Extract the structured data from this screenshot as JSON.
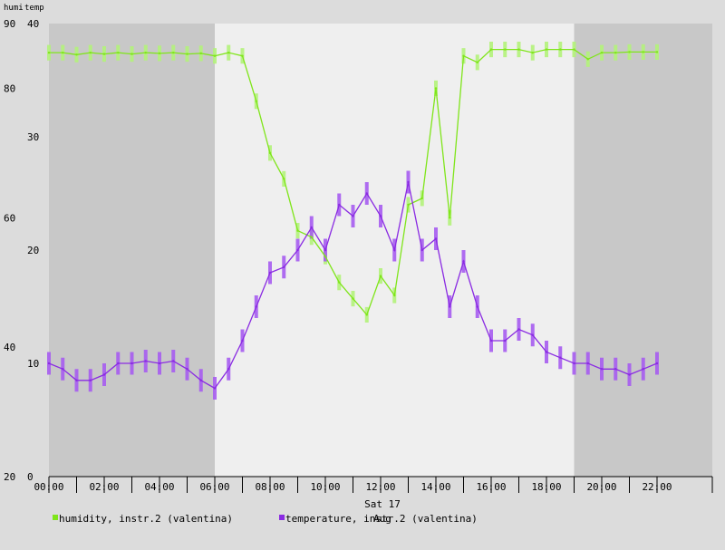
{
  "chart_data": {
    "type": "line",
    "axis_labels": {
      "left": "humi",
      "right": "temp"
    },
    "x_axis": {
      "ticks": [
        "00:00",
        "02:00",
        "04:00",
        "06:00",
        "08:00",
        "10:00",
        "12:00",
        "14:00",
        "16:00",
        "18:00",
        "20:00",
        "22:00"
      ],
      "range_hours": [
        0,
        24
      ],
      "date_label": "Sat 17",
      "date_label_2": "Aug"
    },
    "y_axis_humi": {
      "ticks": [
        "20",
        "40",
        "60",
        "80",
        "90"
      ],
      "range": [
        20,
        90
      ]
    },
    "y_axis_temp": {
      "ticks": [
        "0",
        "10",
        "20",
        "30",
        "40"
      ],
      "range": [
        0,
        40
      ]
    },
    "shading": {
      "night_color": "#c8c8c8",
      "day_color": "#efefef",
      "night_periods_hours": [
        [
          0,
          6.0
        ],
        [
          19.0,
          24
        ]
      ]
    },
    "series": [
      {
        "name": "humidity, instr.2 (valentina)",
        "color": "#7fe51a",
        "band_color": "#b2f27a",
        "axis": "left",
        "x": [
          0.0,
          0.5,
          1.0,
          1.5,
          2.0,
          2.5,
          3.0,
          3.5,
          4.0,
          4.5,
          5.0,
          5.5,
          6.0,
          6.5,
          7.0,
          7.5,
          8.0,
          8.5,
          9.0,
          9.5,
          10.0,
          10.5,
          11.0,
          11.5,
          12.0,
          12.5,
          13.0,
          13.5,
          14.0,
          14.5,
          15.0,
          15.5,
          16.0,
          16.5,
          17.0,
          17.5,
          18.0,
          18.5,
          19.0,
          19.5,
          20.0,
          20.5,
          21.0,
          21.5,
          22.0
        ],
        "values": [
          85.5,
          85.5,
          85.2,
          85.5,
          85.3,
          85.5,
          85.3,
          85.5,
          85.4,
          85.5,
          85.3,
          85.4,
          85.0,
          85.5,
          85.0,
          78.0,
          70.0,
          66.0,
          58.0,
          57.0,
          54.0,
          50.0,
          47.5,
          45.0,
          51.0,
          48.0,
          62.0,
          63.0,
          80.0,
          60.0,
          85.0,
          84.0,
          86.0,
          86.0,
          86.0,
          85.5,
          86.0,
          86.0,
          86.0,
          84.5,
          85.5,
          85.5,
          85.6,
          85.6,
          85.6
        ],
        "error": 1.2
      },
      {
        "name": "temperature, instr.2 (valentina)",
        "color": "#8a2be2",
        "band_color": "#a65cf0",
        "axis": "right",
        "x": [
          0.0,
          0.5,
          1.0,
          1.5,
          2.0,
          2.5,
          3.0,
          3.5,
          4.0,
          4.5,
          5.0,
          5.5,
          6.0,
          6.5,
          7.0,
          7.5,
          8.0,
          8.5,
          9.0,
          9.5,
          10.0,
          10.5,
          11.0,
          11.5,
          12.0,
          12.5,
          13.0,
          13.5,
          14.0,
          14.5,
          15.0,
          15.5,
          16.0,
          16.5,
          17.0,
          17.5,
          18.0,
          18.5,
          19.0,
          19.5,
          20.0,
          20.5,
          21.0,
          21.5,
          22.0
        ],
        "values": [
          10.0,
          9.5,
          8.5,
          8.5,
          9.0,
          10.0,
          10.0,
          10.2,
          10.0,
          10.2,
          9.5,
          8.5,
          7.8,
          9.5,
          12.0,
          15.0,
          18.0,
          18.5,
          20.0,
          22.0,
          20.0,
          24.0,
          23.0,
          25.0,
          23.0,
          20.0,
          26.0,
          20.0,
          21.0,
          15.0,
          19.0,
          15.0,
          12.0,
          12.0,
          13.0,
          12.5,
          11.0,
          10.5,
          10.0,
          10.0,
          9.5,
          9.5,
          9.0,
          9.5,
          10.0
        ],
        "error": 1.0
      }
    ]
  }
}
